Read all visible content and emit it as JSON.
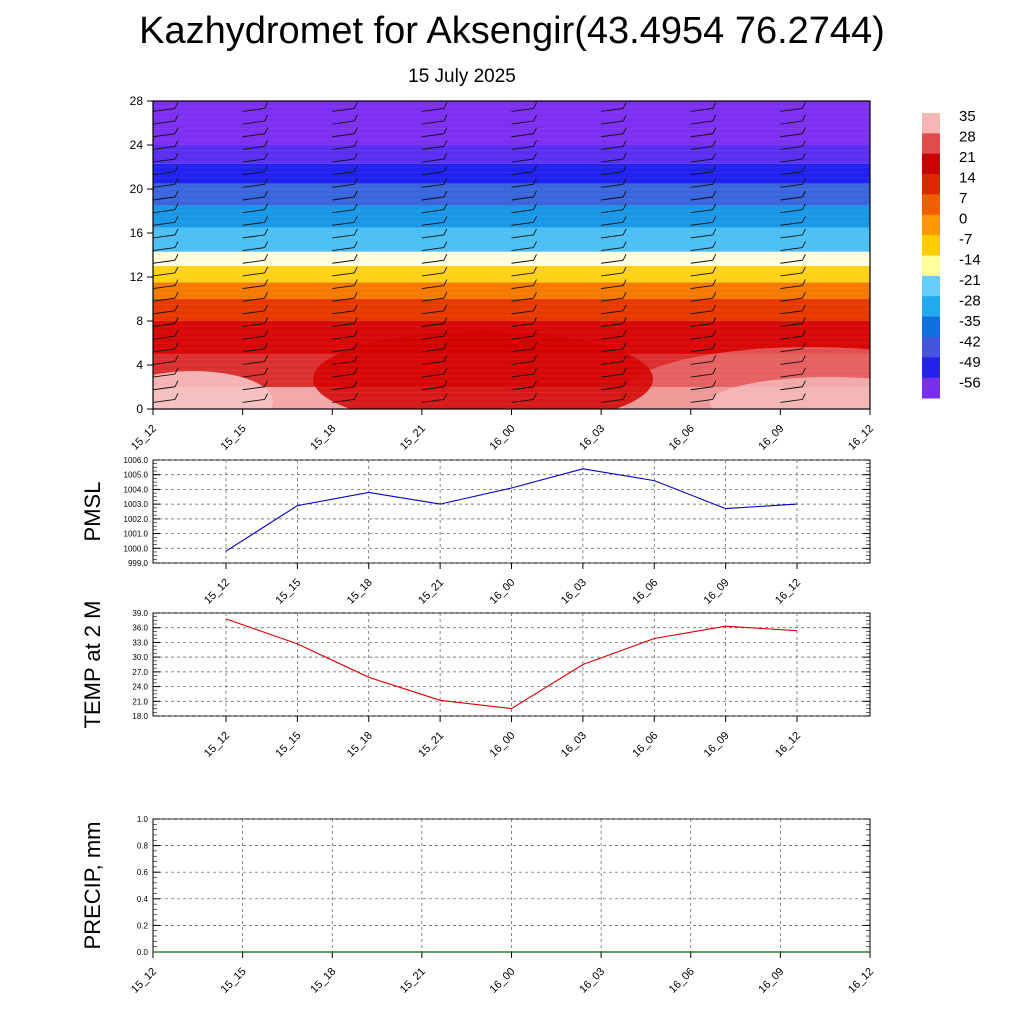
{
  "header": {
    "title": "Kazhydromet for Aksengir(43.4954 76.2744)",
    "date": "15 July 2025"
  },
  "time_labels": [
    "15_12",
    "15_15",
    "15_18",
    "15_21",
    "16_00",
    "16_03",
    "16_06",
    "16_09",
    "16_12"
  ],
  "chart_data": [
    {
      "type": "heatmap",
      "y_ticks": [
        0,
        4,
        8,
        12,
        16,
        20,
        24,
        28
      ],
      "ylim": [
        0,
        28
      ],
      "categories": [
        "15_12",
        "15_15",
        "15_18",
        "15_21",
        "16_00",
        "16_03",
        "16_06",
        "16_09",
        "16_12"
      ],
      "colorbar": {
        "labels": [
          "35",
          "28",
          "21",
          "14",
          "7",
          "0",
          "-7",
          "-14",
          "-21",
          "-28",
          "-35",
          "-42",
          "-49",
          "-56"
        ],
        "colors": [
          "#f7b5b5",
          "#e04b4b",
          "#cc0000",
          "#e02800",
          "#f06000",
          "#ff9800",
          "#ffcc00",
          "#ffff99",
          "#66ccff",
          "#22aaee",
          "#1070dd",
          "#4455dd",
          "#2222ee",
          "#7a2ff0"
        ]
      },
      "bands": [
        {
          "from": 0,
          "to": 2,
          "color": "#f2a8a8"
        },
        {
          "from": 2,
          "to": 5,
          "color": "#dc3030"
        },
        {
          "from": 5,
          "to": 8,
          "color": "#d80808"
        },
        {
          "from": 8,
          "to": 10,
          "color": "#e83a00"
        },
        {
          "from": 10,
          "to": 11.5,
          "color": "#f57a00"
        },
        {
          "from": 11.5,
          "to": 13,
          "color": "#ffd21a"
        },
        {
          "from": 13,
          "to": 14.3,
          "color": "#ffffe0"
        },
        {
          "from": 14.3,
          "to": 16.5,
          "color": "#4cc0f5"
        },
        {
          "from": 16.5,
          "to": 18.5,
          "color": "#1a98e8"
        },
        {
          "from": 18.5,
          "to": 20.5,
          "color": "#3a66dd"
        },
        {
          "from": 20.5,
          "to": 22.3,
          "color": "#2222f0"
        },
        {
          "from": 22.3,
          "to": 24,
          "color": "#5a2ff2"
        },
        {
          "from": 24,
          "to": 28,
          "color": "#7d2ff2"
        }
      ]
    },
    {
      "type": "line",
      "ylabel": "PMSL",
      "ylim": [
        999.0,
        1006.0
      ],
      "y_ticks": [
        "999.0",
        "1000.0",
        "1001.0",
        "1002.0",
        "1003.0",
        "1004.0",
        "1005.0",
        "1006.0"
      ],
      "categories": [
        "15_12",
        "15_15",
        "15_18",
        "15_21",
        "16_00",
        "16_03",
        "16_06",
        "16_09",
        "16_12"
      ],
      "series": [
        {
          "values": [
            999.8,
            1002.9,
            1003.8,
            1003.0,
            1004.1,
            1005.4,
            1004.6,
            1002.7,
            1003.0
          ],
          "color": "#0000cc"
        }
      ]
    },
    {
      "type": "line",
      "ylabel": "TEMP at 2 M",
      "ylim": [
        18.0,
        39.0
      ],
      "y_ticks": [
        "18.0",
        "21.0",
        "24.0",
        "27.0",
        "30.0",
        "33.0",
        "36.0",
        "39.0"
      ],
      "categories": [
        "15_12",
        "15_15",
        "15_18",
        "15_21",
        "16_00",
        "16_03",
        "16_06",
        "16_09",
        "16_12"
      ],
      "series": [
        {
          "values": [
            37.8,
            32.7,
            25.9,
            21.2,
            19.5,
            28.5,
            33.8,
            36.3,
            35.4
          ],
          "color": "#dd0000"
        }
      ]
    },
    {
      "type": "line",
      "ylabel": "PRECIP, mm",
      "ylim": [
        0.0,
        1.0
      ],
      "y_ticks": [
        "0.0",
        "0.2",
        "0.4",
        "0.6",
        "0.8",
        "1.0"
      ],
      "categories": [
        "15_12",
        "15_15",
        "15_18",
        "15_21",
        "16_00",
        "16_03",
        "16_06",
        "16_09",
        "16_12"
      ],
      "series": [
        {
          "values": [
            0,
            0,
            0,
            0,
            0,
            0,
            0,
            0,
            0
          ],
          "color": "#006600"
        }
      ]
    }
  ]
}
